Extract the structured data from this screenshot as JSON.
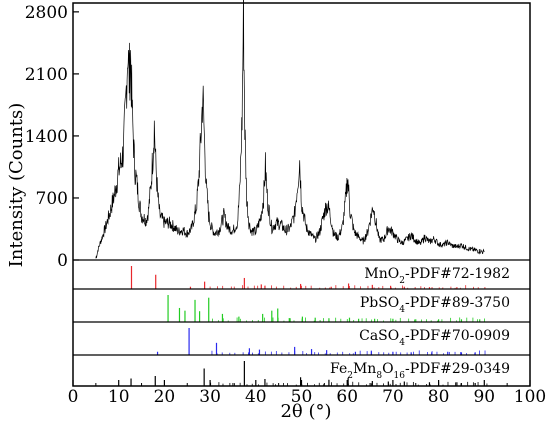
{
  "chart_data": {
    "type": "line",
    "xlabel": "2θ (°)",
    "ylabel": "Intensity (Counts)",
    "xlim": [
      0,
      100
    ],
    "ylim": [
      0,
      2900
    ],
    "x_ticks": [
      0,
      10,
      20,
      30,
      40,
      50,
      60,
      70,
      80,
      90,
      100
    ],
    "y_ticks": [
      0,
      700,
      1400,
      2100,
      2800
    ],
    "grid": false,
    "legend": "none",
    "line_color": "#000000",
    "series": [
      {
        "x": [
          5,
          5.5,
          6,
          7,
          8,
          9,
          10,
          10.5,
          11,
          11.5,
          12,
          12.3,
          12.6,
          13,
          13.5,
          14,
          14.5,
          15,
          16,
          16.5,
          17,
          17.5,
          17.8,
          18.1,
          18.5,
          19,
          20,
          21,
          22,
          23,
          24,
          25,
          26,
          27,
          27.5,
          28,
          28.4,
          28.8,
          29.2,
          29.7,
          30.2,
          31,
          32,
          33,
          34,
          35,
          36,
          36.5,
          37,
          37.3,
          37.6,
          38,
          38.5,
          39,
          40,
          41,
          41.7,
          42.1,
          42.6,
          43.5,
          44.5,
          45.5,
          46.5,
          47.5,
          48.5,
          49.2,
          49.6,
          50,
          51,
          52,
          53,
          54,
          55,
          55.5,
          56,
          56.5,
          57,
          58,
          59,
          59.7,
          60.1,
          60.6,
          61.5,
          62.5,
          63.5,
          64.5,
          65.3,
          65.7,
          66.2,
          67,
          68,
          69,
          70,
          71,
          72,
          73,
          74,
          75,
          76,
          77,
          78,
          79,
          80,
          81,
          82,
          83,
          84,
          85,
          86,
          87,
          88,
          89,
          90
        ],
        "y": [
          20,
          120,
          200,
          350,
          520,
          720,
          1000,
          1100,
          1220,
          1700,
          2400,
          2050,
          2300,
          1600,
          1050,
          850,
          650,
          500,
          450,
          550,
          800,
          1200,
          1520,
          1100,
          750,
          500,
          420,
          420,
          380,
          320,
          340,
          300,
          360,
          600,
          900,
          1400,
          1880,
          1300,
          800,
          500,
          380,
          300,
          340,
          500,
          360,
          330,
          420,
          800,
          1600,
          2800,
          1500,
          700,
          420,
          330,
          320,
          460,
          700,
          1050,
          650,
          360,
          420,
          400,
          330,
          360,
          520,
          880,
          1130,
          650,
          370,
          290,
          230,
          320,
          540,
          620,
          580,
          450,
          300,
          250,
          380,
          700,
          950,
          560,
          320,
          260,
          210,
          320,
          520,
          610,
          450,
          230,
          230,
          360,
          310,
          230,
          190,
          230,
          280,
          220,
          180,
          260,
          200,
          240,
          180,
          170,
          200,
          160,
          150,
          170,
          140,
          120,
          110,
          100,
          90
        ]
      }
    ],
    "reference_patterns": [
      {
        "label_main": "MnO",
        "label_sub": "2",
        "label_rest": "-PDF#72-1982",
        "color": "#e8282c",
        "peaks": [
          [
            12.8,
            100
          ],
          [
            18.1,
            62
          ],
          [
            25.7,
            10
          ],
          [
            28.8,
            32
          ],
          [
            37.5,
            48
          ],
          [
            41.2,
            20
          ],
          [
            42.0,
            14
          ],
          [
            49.8,
            22
          ],
          [
            56.5,
            10
          ],
          [
            60.3,
            24
          ],
          [
            65.5,
            18
          ],
          [
            69.5,
            14
          ],
          [
            72.5,
            10
          ],
          [
            78.0,
            8
          ],
          [
            84.0,
            8
          ]
        ]
      },
      {
        "label_main": "PbSO",
        "label_sub": "4",
        "label_rest": "-PDF#89-3750",
        "color": "#22cc22",
        "peaks": [
          [
            20.8,
            100
          ],
          [
            23.3,
            52
          ],
          [
            24.5,
            42
          ],
          [
            26.7,
            82
          ],
          [
            27.7,
            40
          ],
          [
            29.7,
            90
          ],
          [
            32.7,
            30
          ],
          [
            36.3,
            20
          ],
          [
            41.5,
            30
          ],
          [
            43.5,
            42
          ],
          [
            44.8,
            50
          ],
          [
            47.5,
            14
          ],
          [
            50.2,
            20
          ],
          [
            53.0,
            16
          ],
          [
            56.0,
            14
          ],
          [
            60.5,
            16
          ],
          [
            62.5,
            12
          ],
          [
            66.0,
            12
          ],
          [
            70.0,
            12
          ],
          [
            75.0,
            10
          ],
          [
            80.0,
            10
          ],
          [
            85.0,
            10
          ],
          [
            89.0,
            10
          ]
        ]
      },
      {
        "label_main": "CaSO",
        "label_sub": "4",
        "label_rest": "-PDF#70-0909",
        "color": "#2a2aee",
        "peaks": [
          [
            18.5,
            12
          ],
          [
            25.4,
            100
          ],
          [
            31.4,
            45
          ],
          [
            38.6,
            25
          ],
          [
            40.8,
            20
          ],
          [
            48.5,
            30
          ],
          [
            52.2,
            22
          ],
          [
            55.5,
            18
          ],
          [
            61.8,
            12
          ],
          [
            65.3,
            14
          ],
          [
            70.0,
            12
          ],
          [
            74.0,
            10
          ],
          [
            78.5,
            10
          ],
          [
            82.0,
            12
          ],
          [
            85.0,
            10
          ],
          [
            88.0,
            10
          ]
        ]
      },
      {
        "label_main": "Fe",
        "label_sub": "2",
        "label_mid": "Mn",
        "label_sub2": "8",
        "label_mid2": "O",
        "label_sub3": "16",
        "label_rest": "-PDF#29-0349",
        "color": "#000000",
        "peaks": [
          [
            12.7,
            30
          ],
          [
            18.0,
            40
          ],
          [
            28.7,
            70
          ],
          [
            37.5,
            100
          ],
          [
            42.0,
            28
          ],
          [
            49.8,
            35
          ],
          [
            56.0,
            25
          ],
          [
            60.2,
            32
          ],
          [
            65.5,
            20
          ],
          [
            69.0,
            18
          ],
          [
            72.5,
            18
          ],
          [
            78.0,
            15
          ],
          [
            84.0,
            15
          ],
          [
            88.0,
            12
          ]
        ]
      }
    ]
  }
}
